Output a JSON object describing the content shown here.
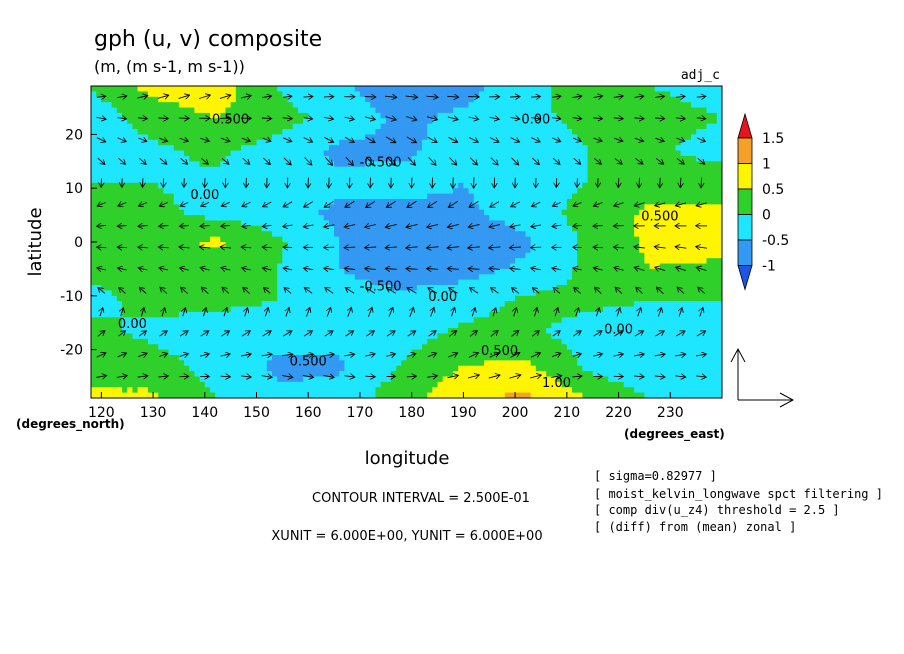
{
  "chart_data": {
    "type": "heatmap",
    "title": "gph (u, v) composite",
    "subtitle": "(m, (m s-1, m s-1))",
    "corner_label": "adj_c",
    "xlabel": "longitude",
    "ylabel": "latitude",
    "x_unit_label": "(degrees_east)",
    "y_unit_label": "(degrees_north)",
    "xlim": [
      118,
      240
    ],
    "ylim": [
      -29,
      29
    ],
    "x_ticks": [
      120,
      130,
      140,
      150,
      160,
      170,
      180,
      190,
      200,
      210,
      220,
      230
    ],
    "y_ticks": [
      20,
      10,
      0,
      -10,
      -20
    ],
    "contour_interval_text": "CONTOUR INTERVAL = 2.500E-01",
    "vector_unit_text": "XUNIT = 6.000E+00, YUNIT = 6.000E+00",
    "notes": [
      "[ sigma=0.82977 ]",
      "[ moist_kelvin_longwave spct filtering ]",
      "[ comp div(u_z4) threshold = 2.5 ]",
      "[ (diff) from (mean) zonal ]"
    ],
    "contour_labels": [
      {
        "text": "0.500",
        "x": 145,
        "y": 22
      },
      {
        "text": "0.00",
        "x": 204,
        "y": 22
      },
      {
        "text": "-0.500",
        "x": 174,
        "y": 14
      },
      {
        "text": "0.00",
        "x": 140,
        "y": 8
      },
      {
        "text": "0.500",
        "x": 228,
        "y": 4
      },
      {
        "text": "-0.500",
        "x": 174,
        "y": -9
      },
      {
        "text": "0.00",
        "x": 186,
        "y": -11
      },
      {
        "text": "0.00",
        "x": 126,
        "y": -16
      },
      {
        "text": "0.00",
        "x": 220,
        "y": -17
      },
      {
        "text": "0.500",
        "x": 197,
        "y": -21
      },
      {
        "text": "0.500",
        "x": 160,
        "y": -23
      },
      {
        "text": "1.00",
        "x": 208,
        "y": -27
      }
    ],
    "colorbar": {
      "levels": [
        "1.5",
        "1",
        "0.5",
        "0",
        "-0.5",
        "-1"
      ],
      "colors": [
        "#e8141c",
        "#f5a026",
        "#fff500",
        "#2fd02a",
        "#1ee6ff",
        "#3399f2",
        "#1f55e6"
      ]
    },
    "field": {
      "x": [
        118,
        130,
        142,
        154,
        166,
        178,
        190,
        202,
        214,
        226,
        240
      ],
      "y": [
        29,
        23,
        17,
        11,
        5,
        0,
        -5,
        -11,
        -17,
        -23,
        -29
      ],
      "values": [
        [
          0.0,
          0.7,
          0.8,
          0.0,
          -0.4,
          -0.9,
          -0.7,
          -0.2,
          0.3,
          0.0,
          -0.2
        ],
        [
          -0.3,
          0.2,
          0.5,
          0.2,
          -0.2,
          -0.6,
          -0.4,
          -0.1,
          0.1,
          0.2,
          0.0
        ],
        [
          -0.2,
          -0.1,
          0.1,
          -0.2,
          -0.6,
          -0.6,
          -0.3,
          -0.3,
          0.0,
          0.1,
          -0.2
        ],
        [
          0.0,
          0.0,
          -0.1,
          -0.3,
          -0.4,
          -0.3,
          -0.5,
          -0.2,
          0.0,
          0.3,
          0.3
        ],
        [
          0.1,
          0.1,
          -0.1,
          -0.3,
          -0.6,
          -0.7,
          -0.6,
          -0.3,
          0.2,
          0.6,
          0.6
        ],
        [
          0.2,
          0.3,
          0.6,
          0.1,
          -0.5,
          -0.8,
          -0.9,
          -0.6,
          0.1,
          0.6,
          0.7
        ],
        [
          0.1,
          0.1,
          0.2,
          0.0,
          -0.5,
          -0.7,
          -0.7,
          -0.4,
          0.1,
          0.5,
          0.4
        ],
        [
          -0.1,
          0.1,
          0.1,
          0.0,
          -0.3,
          -0.4,
          -0.2,
          0.1,
          0.1,
          0.0,
          0.0
        ],
        [
          0.1,
          -0.1,
          -0.2,
          -0.3,
          -0.2,
          -0.2,
          0.1,
          0.1,
          -0.2,
          -0.3,
          -0.3
        ],
        [
          0.5,
          0.2,
          -0.2,
          -0.6,
          -0.6,
          0.0,
          0.5,
          0.6,
          -0.1,
          -0.5,
          -0.4
        ],
        [
          0.5,
          0.6,
          0.0,
          -0.4,
          -0.3,
          0.3,
          0.9,
          1.1,
          0.5,
          0.0,
          -0.2
        ]
      ]
    },
    "vectors": {
      "description_units": "m s-1",
      "dominant": "easterly near equator, westerly at flanks"
    }
  }
}
